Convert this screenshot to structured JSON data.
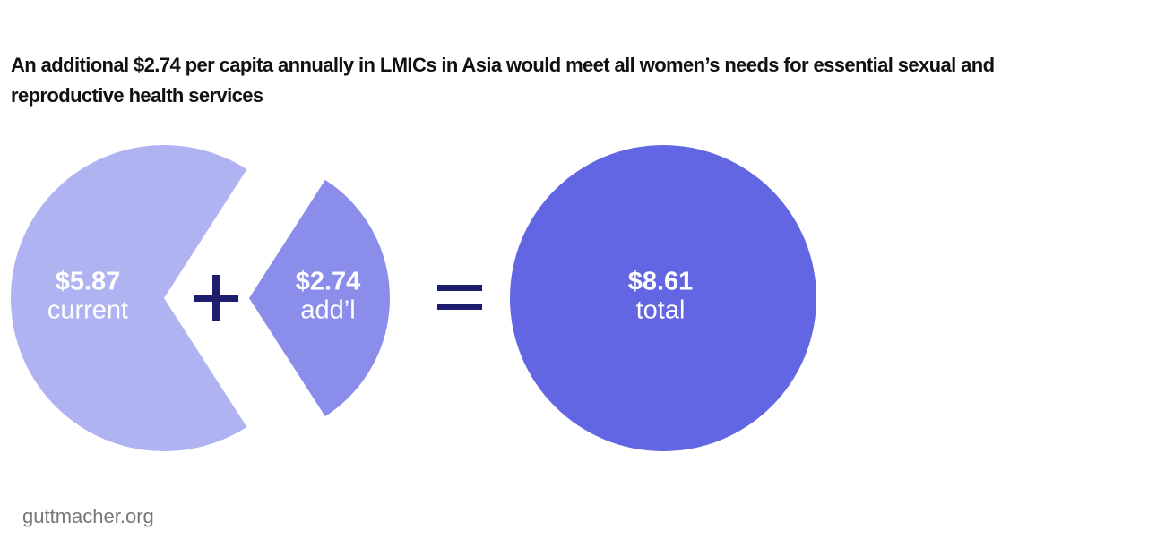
{
  "chart_data": {
    "type": "pie",
    "title": "An additional $2.74 per capita annually in LMICs in Asia would meet all women’s needs for essential sexual and reproductive health services",
    "categories": [
      "current",
      "add’l"
    ],
    "values": [
      5.87,
      2.74
    ],
    "value_labels": [
      "$5.87",
      "$2.74"
    ],
    "colors": [
      "#b0b3f2",
      "#8a8eea"
    ],
    "total": {
      "name": "total",
      "value": 8.61,
      "label": "$8.61",
      "color": "#6266e3"
    },
    "source": "guttmacher.org"
  }
}
